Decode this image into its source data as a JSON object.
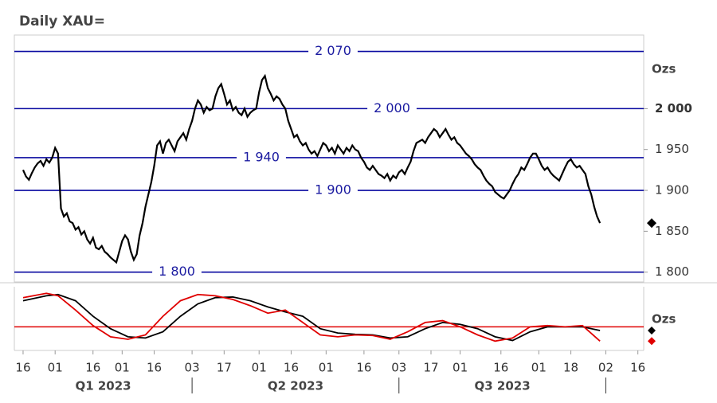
{
  "chart_data": {
    "type": "line",
    "title": "Daily XAU=",
    "y_unit": "Ozs",
    "xlim": [
      -3,
      213
    ],
    "xticks": [
      {
        "value": 0,
        "label": "16"
      },
      {
        "value": 11,
        "label": "01"
      },
      {
        "value": 24,
        "label": "16"
      },
      {
        "value": 34,
        "label": "01"
      },
      {
        "value": 45,
        "label": "16"
      },
      {
        "value": 58,
        "label": "03"
      },
      {
        "value": 69,
        "label": "17"
      },
      {
        "value": 81,
        "label": "01"
      },
      {
        "value": 92,
        "label": "16"
      },
      {
        "value": 104,
        "label": "01"
      },
      {
        "value": 117,
        "label": "16"
      },
      {
        "value": 129,
        "label": "03"
      },
      {
        "value": 140,
        "label": "17"
      },
      {
        "value": 150,
        "label": "01"
      },
      {
        "value": 164,
        "label": "16"
      },
      {
        "value": 177,
        "label": "01"
      },
      {
        "value": 188,
        "label": "18"
      },
      {
        "value": 200,
        "label": "02"
      },
      {
        "value": 211,
        "label": "16"
      }
    ],
    "quarters": [
      "Q1 2023",
      "Q2 2023",
      "Q3 2023"
    ],
    "ylim": [
      1788,
      2090
    ],
    "yticks": [
      {
        "value": 2000,
        "label": "2 000"
      },
      {
        "value": 1950,
        "label": "1 950"
      },
      {
        "value": 1900,
        "label": "1 900"
      },
      {
        "value": 1850,
        "label": "1 850"
      },
      {
        "value": 1800,
        "label": "1 800"
      }
    ],
    "levels": [
      {
        "value": 2070,
        "label": "2 070"
      },
      {
        "value": 2000,
        "label": "2 000"
      },
      {
        "value": 1940,
        "label": "1 940"
      },
      {
        "value": 1900,
        "label": "1 900"
      },
      {
        "value": 1800,
        "label": "1 800"
      }
    ],
    "level_color": "#0a0aa0",
    "series": [
      {
        "color": "#000000",
        "values": [
          1925,
          1917,
          1913,
          1921,
          1928,
          1933,
          1936,
          1930,
          1938,
          1934,
          1940,
          1952,
          1945,
          1878,
          1868,
          1872,
          1862,
          1860,
          1852,
          1855,
          1846,
          1850,
          1840,
          1835,
          1842,
          1830,
          1828,
          1832,
          1825,
          1822,
          1818,
          1815,
          1812,
          1825,
          1838,
          1845,
          1840,
          1825,
          1815,
          1822,
          1845,
          1860,
          1880,
          1895,
          1910,
          1930,
          1955,
          1960,
          1945,
          1958,
          1962,
          1955,
          1948,
          1960,
          1965,
          1970,
          1962,
          1975,
          1985,
          2000,
          2010,
          2005,
          1995,
          2002,
          1998,
          2000,
          2015,
          2025,
          2030,
          2018,
          2005,
          2010,
          1998,
          2002,
          1995,
          1992,
          2000,
          1990,
          1995,
          1998,
          2000,
          2020,
          2035,
          2040,
          2025,
          2018,
          2010,
          2015,
          2012,
          2005,
          2000,
          1985,
          1975,
          1965,
          1968,
          1960,
          1955,
          1958,
          1950,
          1945,
          1948,
          1942,
          1950,
          1958,
          1955,
          1948,
          1952,
          1945,
          1955,
          1950,
          1945,
          1952,
          1948,
          1955,
          1950,
          1948,
          1940,
          1935,
          1928,
          1925,
          1930,
          1925,
          1920,
          1918,
          1915,
          1920,
          1912,
          1918,
          1915,
          1922,
          1925,
          1920,
          1928,
          1935,
          1948,
          1958,
          1960,
          1962,
          1958,
          1965,
          1970,
          1975,
          1972,
          1965,
          1970,
          1975,
          1968,
          1962,
          1965,
          1958,
          1955,
          1950,
          1945,
          1942,
          1938,
          1932,
          1928,
          1925,
          1918,
          1912,
          1908,
          1905,
          1898,
          1895,
          1892,
          1890,
          1895,
          1900,
          1908,
          1915,
          1920,
          1928,
          1925,
          1932,
          1940,
          1945,
          1945,
          1938,
          1930,
          1925,
          1928,
          1922,
          1918,
          1915,
          1912,
          1920,
          1928,
          1935,
          1938,
          1932,
          1928,
          1930,
          1925,
          1920,
          1905,
          1895,
          1880,
          1868,
          1860
        ]
      }
    ],
    "oscillator": {
      "y_unit": "Ozs",
      "ylim": [
        0,
        100
      ],
      "reference": 38,
      "reference_color": "#e00000",
      "x": [
        0,
        8,
        12,
        18,
        24,
        30,
        36,
        42,
        48,
        54,
        60,
        66,
        72,
        78,
        84,
        90,
        96,
        102,
        108,
        114,
        120,
        126,
        132,
        138,
        144,
        150,
        156,
        162,
        168,
        174,
        180,
        186,
        192,
        198
      ],
      "series": [
        {
          "color": "#000000",
          "values": [
            80,
            88,
            90,
            80,
            55,
            35,
            22,
            20,
            30,
            55,
            75,
            85,
            86,
            80,
            70,
            62,
            55,
            35,
            28,
            26,
            25,
            20,
            22,
            35,
            45,
            42,
            35,
            22,
            16,
            30,
            38,
            38,
            38,
            32
          ]
        },
        {
          "color": "#e00000",
          "values": [
            85,
            92,
            88,
            65,
            40,
            22,
            18,
            25,
            55,
            80,
            90,
            88,
            82,
            72,
            60,
            65,
            45,
            25,
            22,
            25,
            24,
            18,
            30,
            45,
            48,
            38,
            25,
            15,
            20,
            38,
            40,
            38,
            40,
            15
          ]
        }
      ]
    }
  }
}
